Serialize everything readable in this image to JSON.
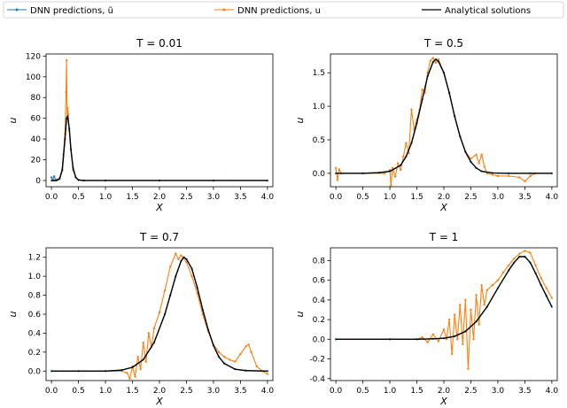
{
  "legend": {
    "entries": [
      {
        "label": "DNN predictions, ũ",
        "color": "#1f77b4",
        "style": "line-marker"
      },
      {
        "label": "DNN predictions, u",
        "color": "#ff7f0e",
        "style": "line-marker"
      },
      {
        "label": "Analytical solutions",
        "color": "#000000",
        "style": "line"
      }
    ]
  },
  "chart_data": [
    {
      "type": "line",
      "title": "T = 0.01",
      "xlabel": "X",
      "ylabel": "u",
      "xlim": [
        -0.1,
        4.1
      ],
      "ylim": [
        -6,
        122
      ],
      "xticks": [
        "0.0",
        "0.5",
        "1.0",
        "1.5",
        "2.0",
        "2.5",
        "3.0",
        "3.5",
        "4.0"
      ],
      "yticks": [
        "0",
        "20",
        "40",
        "60",
        "80",
        "100",
        "120"
      ],
      "series": [
        {
          "name": "Analytical solutions",
          "color": "#000000",
          "x": [
            0.0,
            0.1,
            0.15,
            0.2,
            0.25,
            0.28,
            0.3,
            0.33,
            0.36,
            0.4,
            0.45,
            0.5,
            0.6,
            1.0,
            2.0,
            3.0,
            4.0
          ],
          "y": [
            0,
            0.1,
            1.5,
            10,
            40,
            60,
            62,
            50,
            30,
            12,
            3,
            0.5,
            0,
            0,
            0,
            0,
            0
          ]
        },
        {
          "name": "DNN predictions, ũ",
          "color": "#1f77b4",
          "x": [
            0.0,
            0.02,
            0.05,
            0.08,
            0.1,
            0.15,
            0.2,
            0.25,
            0.28,
            0.3,
            0.33,
            0.36,
            0.4,
            0.45,
            0.5,
            0.6,
            1.0,
            2.0,
            3.0,
            4.0
          ],
          "y": [
            3,
            0,
            4,
            0,
            0.5,
            2,
            10,
            40,
            60,
            62,
            50,
            30,
            12,
            3,
            0.5,
            0,
            0,
            0,
            0,
            0
          ]
        },
        {
          "name": "DNN predictions, u",
          "color": "#ff7f0e",
          "x": [
            0.0,
            0.05,
            0.1,
            0.15,
            0.2,
            0.22,
            0.25,
            0.27,
            0.28,
            0.29,
            0.3,
            0.31,
            0.33,
            0.36,
            0.4,
            0.45,
            0.5,
            0.6,
            1.0,
            2.0,
            3.0,
            4.0
          ],
          "y": [
            0,
            0,
            1,
            2,
            12,
            25,
            45,
            85,
            116,
            60,
            70,
            64,
            48,
            30,
            10,
            3,
            0.5,
            0,
            0,
            0,
            0,
            0
          ]
        }
      ]
    },
    {
      "type": "line",
      "title": "T = 0.5",
      "xlabel": "X",
      "ylabel": "u",
      "xlim": [
        -0.1,
        4.1
      ],
      "ylim": [
        -0.2,
        1.78
      ],
      "xticks": [
        "0.0",
        "0.5",
        "1.0",
        "1.5",
        "2.0",
        "2.5",
        "3.0",
        "3.5",
        "4.0"
      ],
      "yticks": [
        "0.0",
        "0.5",
        "1.0",
        "1.5"
      ],
      "series": [
        {
          "name": "Analytical solutions",
          "color": "#000000",
          "x": [
            0,
            0.5,
            0.8,
            1.0,
            1.2,
            1.3,
            1.4,
            1.5,
            1.6,
            1.7,
            1.8,
            1.85,
            1.9,
            2.0,
            2.1,
            2.2,
            2.3,
            2.4,
            2.5,
            2.6,
            2.7,
            2.9,
            3.2,
            3.6,
            4.0
          ],
          "y": [
            0,
            0,
            0.01,
            0.03,
            0.12,
            0.25,
            0.45,
            0.75,
            1.1,
            1.45,
            1.66,
            1.7,
            1.67,
            1.5,
            1.2,
            0.85,
            0.55,
            0.32,
            0.17,
            0.08,
            0.03,
            0.005,
            0,
            0,
            0
          ]
        },
        {
          "name": "DNN predictions, ũ",
          "color": "#1f77b4",
          "x": [
            0,
            0.5,
            0.8,
            1.0,
            1.2,
            1.3,
            1.4,
            1.5,
            1.6,
            1.7,
            1.8,
            1.85,
            1.9,
            2.0,
            2.1,
            2.2,
            2.3,
            2.4,
            2.5,
            2.6,
            2.7,
            2.9,
            3.2,
            3.6,
            4.0
          ],
          "y": [
            0,
            0,
            0.01,
            0.03,
            0.12,
            0.25,
            0.45,
            0.75,
            1.1,
            1.45,
            1.66,
            1.7,
            1.67,
            1.5,
            1.2,
            0.85,
            0.55,
            0.32,
            0.17,
            0.08,
            0.03,
            0.005,
            0,
            0,
            0
          ]
        },
        {
          "name": "DNN predictions, u",
          "color": "#ff7f0e",
          "x": [
            0,
            0.03,
            0.06,
            0.1,
            0.5,
            0.9,
            1.0,
            1.02,
            1.05,
            1.1,
            1.15,
            1.2,
            1.25,
            1.3,
            1.35,
            1.4,
            1.45,
            1.5,
            1.55,
            1.6,
            1.65,
            1.7,
            1.75,
            1.8,
            1.85,
            1.9,
            2.0,
            2.1,
            2.2,
            2.3,
            2.4,
            2.5,
            2.6,
            2.65,
            2.7,
            2.75,
            2.8,
            2.9,
            3.0,
            3.2,
            3.4,
            3.5,
            3.6,
            3.7,
            4.0
          ],
          "y": [
            0.08,
            -0.1,
            0.06,
            0,
            0,
            0,
            0.05,
            -0.18,
            0.08,
            -0.05,
            0.15,
            0.05,
            0.25,
            0.45,
            0.3,
            0.95,
            0.65,
            0.8,
            0.95,
            1.25,
            1.2,
            1.5,
            1.68,
            1.72,
            1.65,
            1.7,
            1.5,
            1.2,
            0.85,
            0.55,
            0.32,
            0.22,
            0.28,
            0.15,
            0.28,
            0.1,
            0.0,
            -0.02,
            -0.04,
            -0.04,
            -0.06,
            -0.12,
            -0.04,
            0,
            0
          ]
        }
      ]
    },
    {
      "type": "line",
      "title": "T = 0.7",
      "xlabel": "X",
      "ylabel": "u",
      "xlim": [
        -0.1,
        4.1
      ],
      "ylim": [
        -0.1,
        1.3
      ],
      "xticks": [
        "0.0",
        "0.5",
        "1.0",
        "1.5",
        "2.0",
        "2.5",
        "3.0",
        "3.5",
        "4.0"
      ],
      "yticks": [
        "0.0",
        "0.2",
        "0.4",
        "0.6",
        "0.8",
        "1.0",
        "1.2"
      ],
      "series": [
        {
          "name": "Analytical solutions",
          "color": "#000000",
          "x": [
            0,
            0.5,
            1.0,
            1.3,
            1.5,
            1.7,
            1.9,
            2.1,
            2.2,
            2.3,
            2.4,
            2.45,
            2.5,
            2.6,
            2.7,
            2.8,
            2.9,
            3.0,
            3.1,
            3.2,
            3.4,
            3.6,
            4.0
          ],
          "y": [
            0,
            0,
            0,
            0.01,
            0.04,
            0.12,
            0.3,
            0.6,
            0.8,
            1.0,
            1.16,
            1.2,
            1.18,
            1.08,
            0.88,
            0.65,
            0.44,
            0.27,
            0.15,
            0.08,
            0.02,
            0.005,
            0
          ]
        },
        {
          "name": "DNN predictions, ũ",
          "color": "#1f77b4",
          "x": [
            0,
            0.5,
            1.0,
            1.3,
            1.5,
            1.7,
            1.9,
            2.1,
            2.2,
            2.3,
            2.4,
            2.45,
            2.5,
            2.6,
            2.7,
            2.8,
            2.9,
            3.0,
            3.1,
            3.2,
            3.4,
            3.6,
            4.0
          ],
          "y": [
            0,
            0,
            0,
            0.01,
            0.04,
            0.12,
            0.3,
            0.6,
            0.8,
            1.0,
            1.16,
            1.2,
            1.18,
            1.08,
            0.88,
            0.65,
            0.44,
            0.27,
            0.15,
            0.08,
            0.02,
            0.005,
            0
          ]
        },
        {
          "name": "DNN predictions, u",
          "color": "#ff7f0e",
          "x": [
            0,
            0.5,
            1.0,
            1.3,
            1.4,
            1.45,
            1.5,
            1.55,
            1.6,
            1.65,
            1.7,
            1.75,
            1.8,
            1.85,
            1.9,
            2.0,
            2.1,
            2.2,
            2.3,
            2.35,
            2.4,
            2.5,
            2.6,
            2.7,
            2.8,
            2.9,
            3.0,
            3.1,
            3.2,
            3.3,
            3.4,
            3.5,
            3.6,
            3.65,
            3.7,
            3.8,
            3.9,
            4.0
          ],
          "y": [
            0,
            0,
            0,
            0,
            -0.02,
            -0.08,
            0.05,
            -0.06,
            0.15,
            0.02,
            0.3,
            0.1,
            0.4,
            0.25,
            0.45,
            0.62,
            0.85,
            1.1,
            1.24,
            1.18,
            1.22,
            1.15,
            1.0,
            0.82,
            0.6,
            0.42,
            0.28,
            0.2,
            0.15,
            0.12,
            0.1,
            0.18,
            0.26,
            0.28,
            0.2,
            0.05,
            0.0,
            -0.03
          ]
        }
      ]
    },
    {
      "type": "line",
      "title": "T = 1",
      "xlabel": "X",
      "ylabel": "u",
      "xlim": [
        -0.1,
        4.1
      ],
      "ylim": [
        -0.42,
        0.93
      ],
      "xticks": [
        "0.0",
        "0.5",
        "1.0",
        "1.5",
        "2.0",
        "2.5",
        "3.0",
        "3.5",
        "4.0"
      ],
      "yticks": [
        "-0.4",
        "-0.2",
        "0.0",
        "0.2",
        "0.4",
        "0.6",
        "0.8"
      ],
      "series": [
        {
          "name": "Analytical solutions",
          "color": "#000000",
          "x": [
            0,
            1.0,
            1.5,
            1.8,
            2.0,
            2.2,
            2.4,
            2.6,
            2.8,
            3.0,
            3.2,
            3.3,
            3.4,
            3.5,
            3.6,
            3.7,
            3.8,
            3.9,
            4.0
          ],
          "y": [
            0,
            0,
            0,
            0.005,
            0.01,
            0.03,
            0.08,
            0.18,
            0.33,
            0.52,
            0.7,
            0.78,
            0.84,
            0.84,
            0.78,
            0.67,
            0.55,
            0.44,
            0.33
          ]
        },
        {
          "name": "DNN predictions, ũ",
          "color": "#1f77b4",
          "x": [
            0,
            1.0,
            1.5,
            1.8,
            2.0,
            2.2,
            2.4,
            2.6,
            2.8,
            3.0,
            3.2,
            3.3,
            3.4,
            3.5,
            3.6,
            3.7,
            3.8,
            3.9,
            4.0
          ],
          "y": [
            0,
            0,
            0,
            0.005,
            0.01,
            0.03,
            0.08,
            0.18,
            0.33,
            0.52,
            0.7,
            0.78,
            0.84,
            0.84,
            0.78,
            0.67,
            0.55,
            0.44,
            0.33
          ]
        },
        {
          "name": "DNN predictions, u",
          "color": "#ff7f0e",
          "x": [
            0,
            1.0,
            1.5,
            1.6,
            1.7,
            1.8,
            1.9,
            2.0,
            2.05,
            2.1,
            2.15,
            2.2,
            2.25,
            2.3,
            2.35,
            2.4,
            2.45,
            2.5,
            2.55,
            2.6,
            2.65,
            2.7,
            2.75,
            2.8,
            2.9,
            3.0,
            3.1,
            3.2,
            3.3,
            3.4,
            3.5,
            3.6,
            3.7,
            3.8,
            3.9,
            4.0
          ],
          "y": [
            0,
            0,
            0.0,
            0.02,
            -0.03,
            0.05,
            -0.02,
            0.1,
            0.0,
            0.2,
            -0.15,
            0.25,
            0.0,
            0.35,
            -0.05,
            0.4,
            -0.3,
            0.3,
            0.0,
            0.45,
            0.15,
            0.55,
            0.35,
            0.5,
            0.55,
            0.6,
            0.68,
            0.75,
            0.82,
            0.87,
            0.9,
            0.88,
            0.75,
            0.62,
            0.52,
            0.42
          ]
        }
      ]
    }
  ]
}
